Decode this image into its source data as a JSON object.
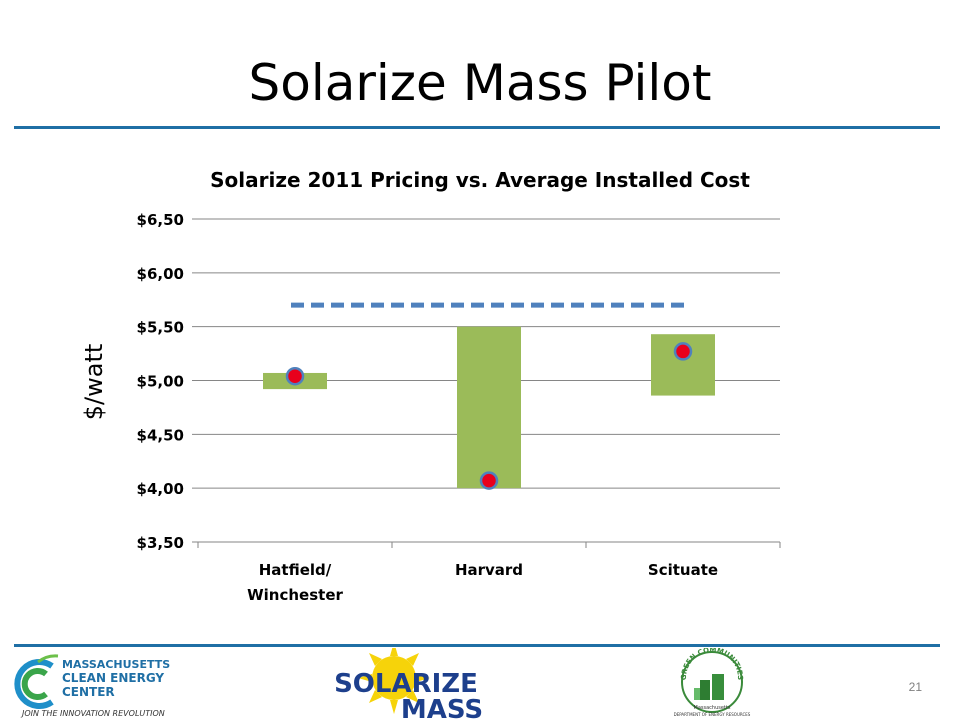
{
  "slide": {
    "title": "Solarize Mass Pilot",
    "page_number": "21"
  },
  "chart_data": {
    "type": "bar",
    "title": "Solarize 2011 Pricing vs. Average Installed Cost",
    "ylabel": "$/watt",
    "xlabel": "",
    "categories": [
      "Hatfield/\nWinchester",
      "Harvard",
      "Scituate"
    ],
    "ranges": [
      {
        "low": 4.92,
        "high": 5.07
      },
      {
        "low": 4.0,
        "high": 5.5
      },
      {
        "low": 4.86,
        "high": 5.43
      }
    ],
    "points": [
      5.04,
      4.07,
      5.27
    ],
    "average_line": 5.7,
    "ylim": [
      3.5,
      6.5
    ],
    "yticks": [
      "$3,50",
      "$4,00",
      "$4,50",
      "$5,00",
      "$5,50",
      "$6,00",
      "$6,50"
    ],
    "ytick_values": [
      3.5,
      4.0,
      4.5,
      5.0,
      5.5,
      6.0,
      6.5
    ],
    "grid": true,
    "colors": {
      "bar": "#9bbb59",
      "point": "#e8001c",
      "point_outline": "#4f81bd",
      "average_line": "#4f81bd",
      "grid": "#868686"
    }
  },
  "footer": {
    "mass_cec": {
      "line1": "MASSACHUSETTS",
      "line2": "CLEAN ENERGY",
      "line3": "CENTER",
      "tagline": "JOIN THE INNOVATION REVOLUTION"
    },
    "solarize": {
      "line1": "SOLARIZE",
      "line2": "MASS"
    },
    "green_communities": {
      "arc": "GREEN COMMUNITIES",
      "line1": "Massachusetts",
      "line2": "DEPARTMENT OF ENERGY RESOURCES"
    }
  }
}
